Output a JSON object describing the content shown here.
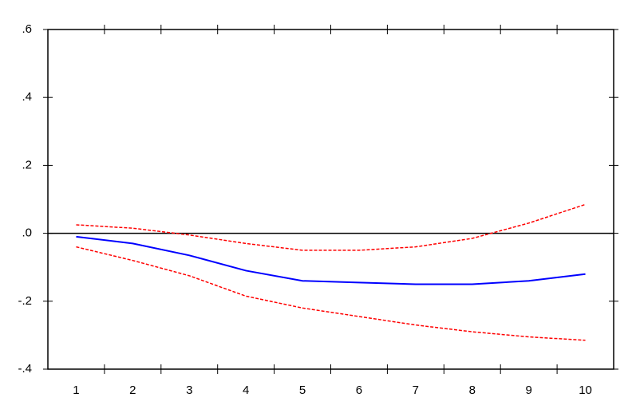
{
  "chart_data": {
    "type": "line",
    "categories": [
      "1",
      "2",
      "3",
      "4",
      "5",
      "6",
      "7",
      "8",
      "9",
      "10"
    ],
    "series": [
      {
        "color": "#0000ff",
        "dashed": false,
        "values": [
          -0.01,
          -0.03,
          -0.065,
          -0.11,
          -0.14,
          -0.145,
          -0.15,
          -0.15,
          -0.14,
          -0.12
        ]
      },
      {
        "color": "#ff0000",
        "dashed": true,
        "values": [
          0.025,
          0.015,
          -0.005,
          -0.03,
          -0.05,
          -0.05,
          -0.04,
          -0.015,
          0.03,
          0.085
        ]
      },
      {
        "color": "#ff0000",
        "dashed": true,
        "values": [
          -0.04,
          -0.08,
          -0.125,
          -0.185,
          -0.22,
          -0.245,
          -0.27,
          -0.29,
          -0.305,
          -0.315
        ]
      }
    ],
    "ylim": [
      -0.4,
      0.6
    ],
    "yticks": [
      {
        "value": -0.4,
        "label": "-.4"
      },
      {
        "value": -0.2,
        "label": "-.2"
      },
      {
        "value": 0,
        "label": ".0"
      },
      {
        "value": 0.2,
        "label": ".2"
      },
      {
        "value": 0.4,
        "label": ".4"
      },
      {
        "value": 0.6,
        "label": ".6"
      }
    ],
    "zero_line": true
  }
}
